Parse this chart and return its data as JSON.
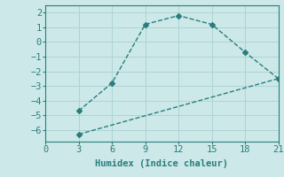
{
  "line1_x": [
    3,
    6,
    9,
    12,
    15,
    18,
    21
  ],
  "line1_y": [
    -4.7,
    -2.8,
    1.2,
    1.8,
    1.2,
    -0.7,
    -2.5
  ],
  "line2_x": [
    3,
    21
  ],
  "line2_y": [
    -6.3,
    -2.5
  ],
  "color": "#2a7d7d",
  "bg_color": "#cce8e8",
  "grid_color": "#aed4d4",
  "xlabel": "Humidex (Indice chaleur)",
  "xlim": [
    0,
    21
  ],
  "ylim": [
    -6.8,
    2.5
  ],
  "xticks": [
    0,
    3,
    6,
    9,
    12,
    15,
    18,
    21
  ],
  "yticks": [
    -6,
    -5,
    -4,
    -3,
    -2,
    -1,
    0,
    1,
    2
  ],
  "marker": "D",
  "markersize": 3,
  "linewidth": 1.0,
  "tick_labelsize": 7.5,
  "font_family": "monospace"
}
